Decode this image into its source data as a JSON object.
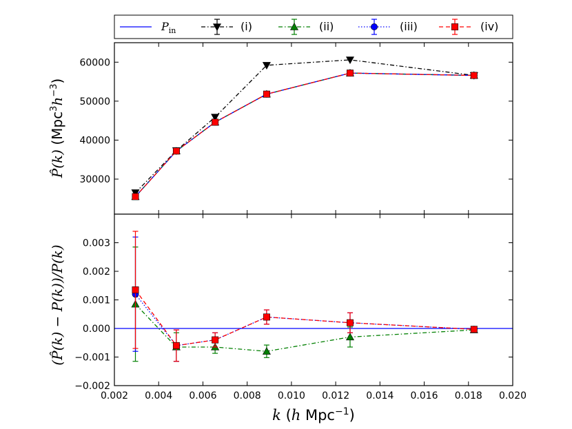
{
  "chart_data": {
    "type": "line",
    "legend": {
      "placement": "top",
      "entries": [
        {
          "label": "P_in",
          "main": "P",
          "sub": "in",
          "color": "#0000ff",
          "style": "solid",
          "marker": "none"
        },
        {
          "label": "(i)",
          "color": "#000000",
          "style": "dashdot",
          "marker": "triangle-down"
        },
        {
          "label": "(ii)",
          "color": "#007f00",
          "style": "dashdot",
          "marker": "triangle-up"
        },
        {
          "label": "(iii)",
          "color": "#0000ff",
          "style": "dotted",
          "marker": "circle"
        },
        {
          "label": "(iv)",
          "color": "#ff0000",
          "style": "dashed",
          "marker": "square"
        }
      ]
    },
    "xlabel": "k (h Mpc^-1)",
    "xlabel_parts": {
      "k": "k",
      "open": " (",
      "h": "h",
      "unit": " Mpc",
      "exp": "−1",
      "close": ")"
    },
    "xlim": [
      0.002,
      0.02
    ],
    "xticks": [
      0.002,
      0.004,
      0.006,
      0.008,
      0.01,
      0.012,
      0.014,
      0.016,
      0.018,
      0.02
    ],
    "xtick_labels": [
      "0.002",
      "0.004",
      "0.006",
      "0.008",
      "0.010",
      "0.012",
      "0.014",
      "0.016",
      "0.018",
      "0.020"
    ],
    "panels": [
      {
        "name": "power-spectrum",
        "ylabel": "P̂(k) (Mpc^3 h^-3)",
        "ylabel_parts": {
          "sym": "P̂(k)",
          "open": " (Mpc",
          "exp1": "3",
          "h": "h",
          "exp2": "−3",
          "close": ")"
        },
        "ylim": [
          21000,
          65000
        ],
        "yticks": [
          30000,
          40000,
          50000,
          60000
        ],
        "ytick_labels": [
          "30000",
          "40000",
          "50000",
          "60000"
        ],
        "series": [
          {
            "name": "(i)",
            "x": [
              0.00295,
              0.0048,
              0.00655,
              0.00888,
              0.01265,
              0.01825
            ],
            "y": [
              26500,
              37300,
              45900,
              59200,
              60600,
              56600
            ]
          },
          {
            "name": "P_in",
            "x": [
              0.00295,
              0.0048,
              0.00655,
              0.00888,
              0.01265,
              0.01825
            ],
            "y": [
              25500,
              37200,
              44600,
              51800,
              57200,
              56600
            ]
          },
          {
            "name": "(ii)",
            "x": [
              0.00295,
              0.0048,
              0.00655,
              0.00888,
              0.01265,
              0.01825
            ],
            "y": [
              25500,
              37200,
              44600,
              51800,
              57200,
              56600
            ]
          },
          {
            "name": "(iii)",
            "x": [
              0.00295,
              0.0048,
              0.00655,
              0.00888,
              0.01265,
              0.01825
            ],
            "y": [
              25500,
              37200,
              44600,
              51800,
              57200,
              56600
            ]
          },
          {
            "name": "(iv)",
            "x": [
              0.00295,
              0.0048,
              0.00655,
              0.00888,
              0.01265,
              0.01825
            ],
            "y": [
              25500,
              37200,
              44600,
              51800,
              57200,
              56600
            ]
          }
        ]
      },
      {
        "name": "fractional-difference",
        "ylabel": "(P̂(k) − P(k))/P(k)",
        "ylabel_parts": {
          "text": "(P̂(k) − P(k))/P(k)"
        },
        "ylim": [
          -0.002,
          0.004
        ],
        "yticks": [
          -0.002,
          -0.001,
          0.0,
          0.001,
          0.002,
          0.003
        ],
        "ytick_labels": [
          "−0.002",
          "−0.001",
          "0.000",
          "0.001",
          "0.002",
          "0.003"
        ],
        "zero_line": {
          "series": "P_in",
          "y": 0.0
        },
        "series": [
          {
            "name": "(ii)",
            "x": [
              0.00295,
              0.0048,
              0.00655,
              0.00888,
              0.01265,
              0.01825
            ],
            "y": [
              0.00085,
              -0.00065,
              -0.00065,
              -0.0008,
              -0.0003,
              -5e-05
            ],
            "err": [
              0.002,
              0.0005,
              0.00022,
              0.00022,
              0.00035,
              3e-05
            ]
          },
          {
            "name": "(iii)",
            "x": [
              0.00295,
              0.0048,
              0.00655,
              0.00888,
              0.01265,
              0.01825
            ],
            "y": [
              0.0012,
              -0.0006,
              -0.0004,
              0.0004,
              0.0002,
              -3e-05
            ],
            "err": [
              0.002,
              0.00055,
              0.00025,
              0.00025,
              0.00035,
              3e-05
            ]
          },
          {
            "name": "(iv)",
            "x": [
              0.00295,
              0.0048,
              0.00655,
              0.00888,
              0.01265,
              0.01825
            ],
            "y": [
              0.00135,
              -0.0006,
              -0.0004,
              0.0004,
              0.0002,
              -3e-05
            ],
            "err": [
              0.00205,
              0.00055,
              0.00025,
              0.00025,
              0.00035,
              3e-05
            ]
          }
        ]
      }
    ]
  }
}
